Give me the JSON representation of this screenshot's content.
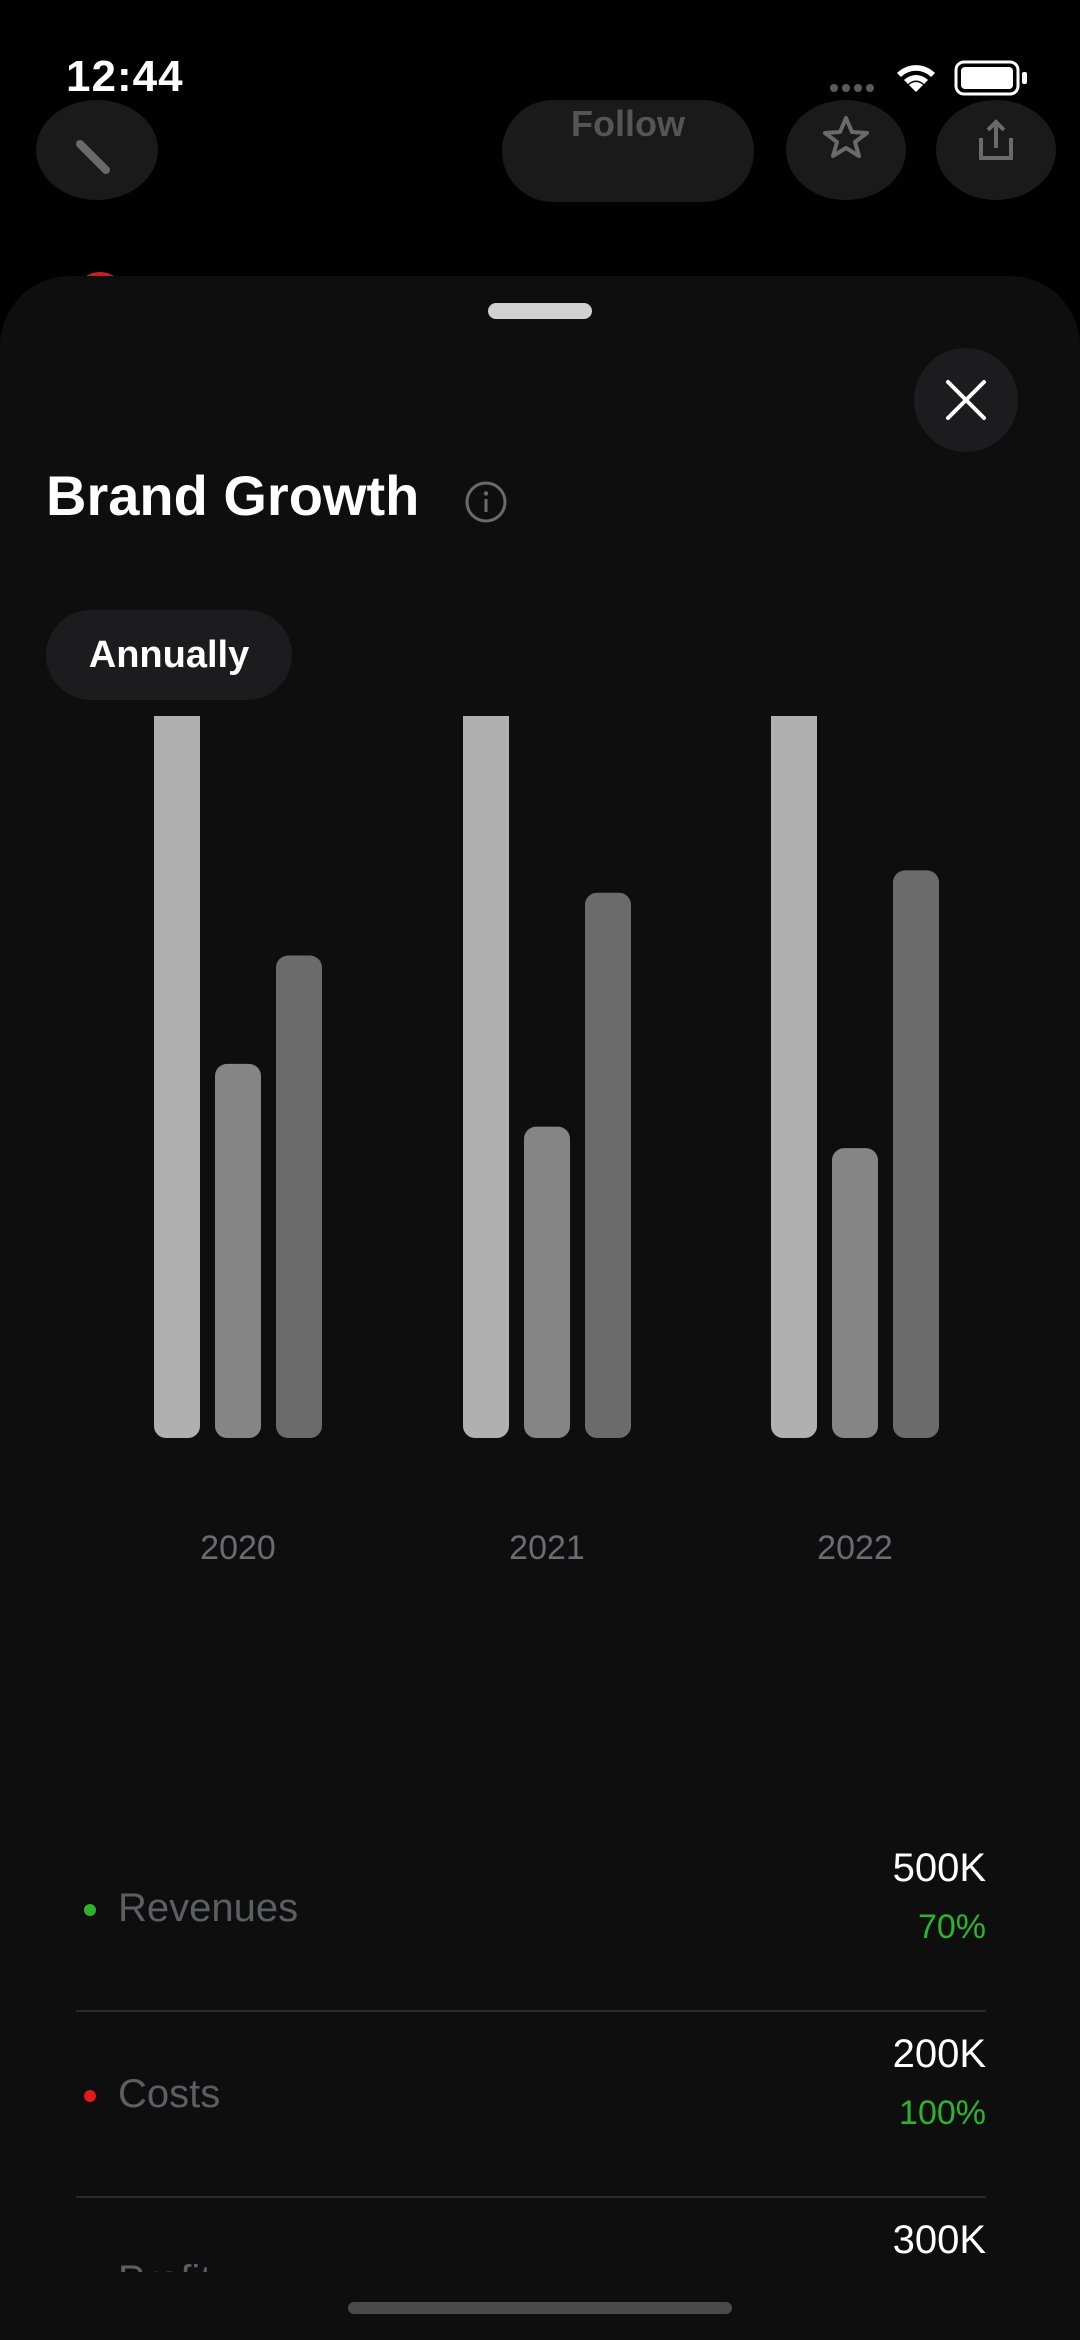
{
  "status_bar": {
    "time": "12:44"
  },
  "background_header": {
    "follow_label": "Follow"
  },
  "sheet": {
    "title": "Brand Growth",
    "period": "Annually"
  },
  "colors": {
    "bar_revenues": "#b0b0b0",
    "bar_costs": "#858585",
    "bar_profit": "#6b6b6b",
    "dot_revenues": "#2db42d",
    "dot_costs": "#e01b1b",
    "dot_profit": "#9cc4ee",
    "positive_change": "#2db42d"
  },
  "chart_data": {
    "type": "bar",
    "categories": [
      "2020",
      "2021",
      "2022"
    ],
    "series": [
      {
        "values": [
          100,
          100,
          100
        ]
      },
      {
        "values": [
          43.5,
          36.2,
          33.7
        ]
      },
      {
        "values": [
          56.1,
          63.4,
          66.0
        ]
      }
    ],
    "ylim": [
      0,
      100
    ],
    "grid": false
  },
  "metrics": [
    {
      "label": "Revenues",
      "value": "500K",
      "change": "70%",
      "dot": "#2db42d"
    },
    {
      "label": "Costs",
      "value": "200K",
      "change": "100%",
      "dot": "#e01b1b"
    },
    {
      "label": "Profit",
      "value": "300K",
      "change": "",
      "dot": "#9cc4ee"
    }
  ]
}
